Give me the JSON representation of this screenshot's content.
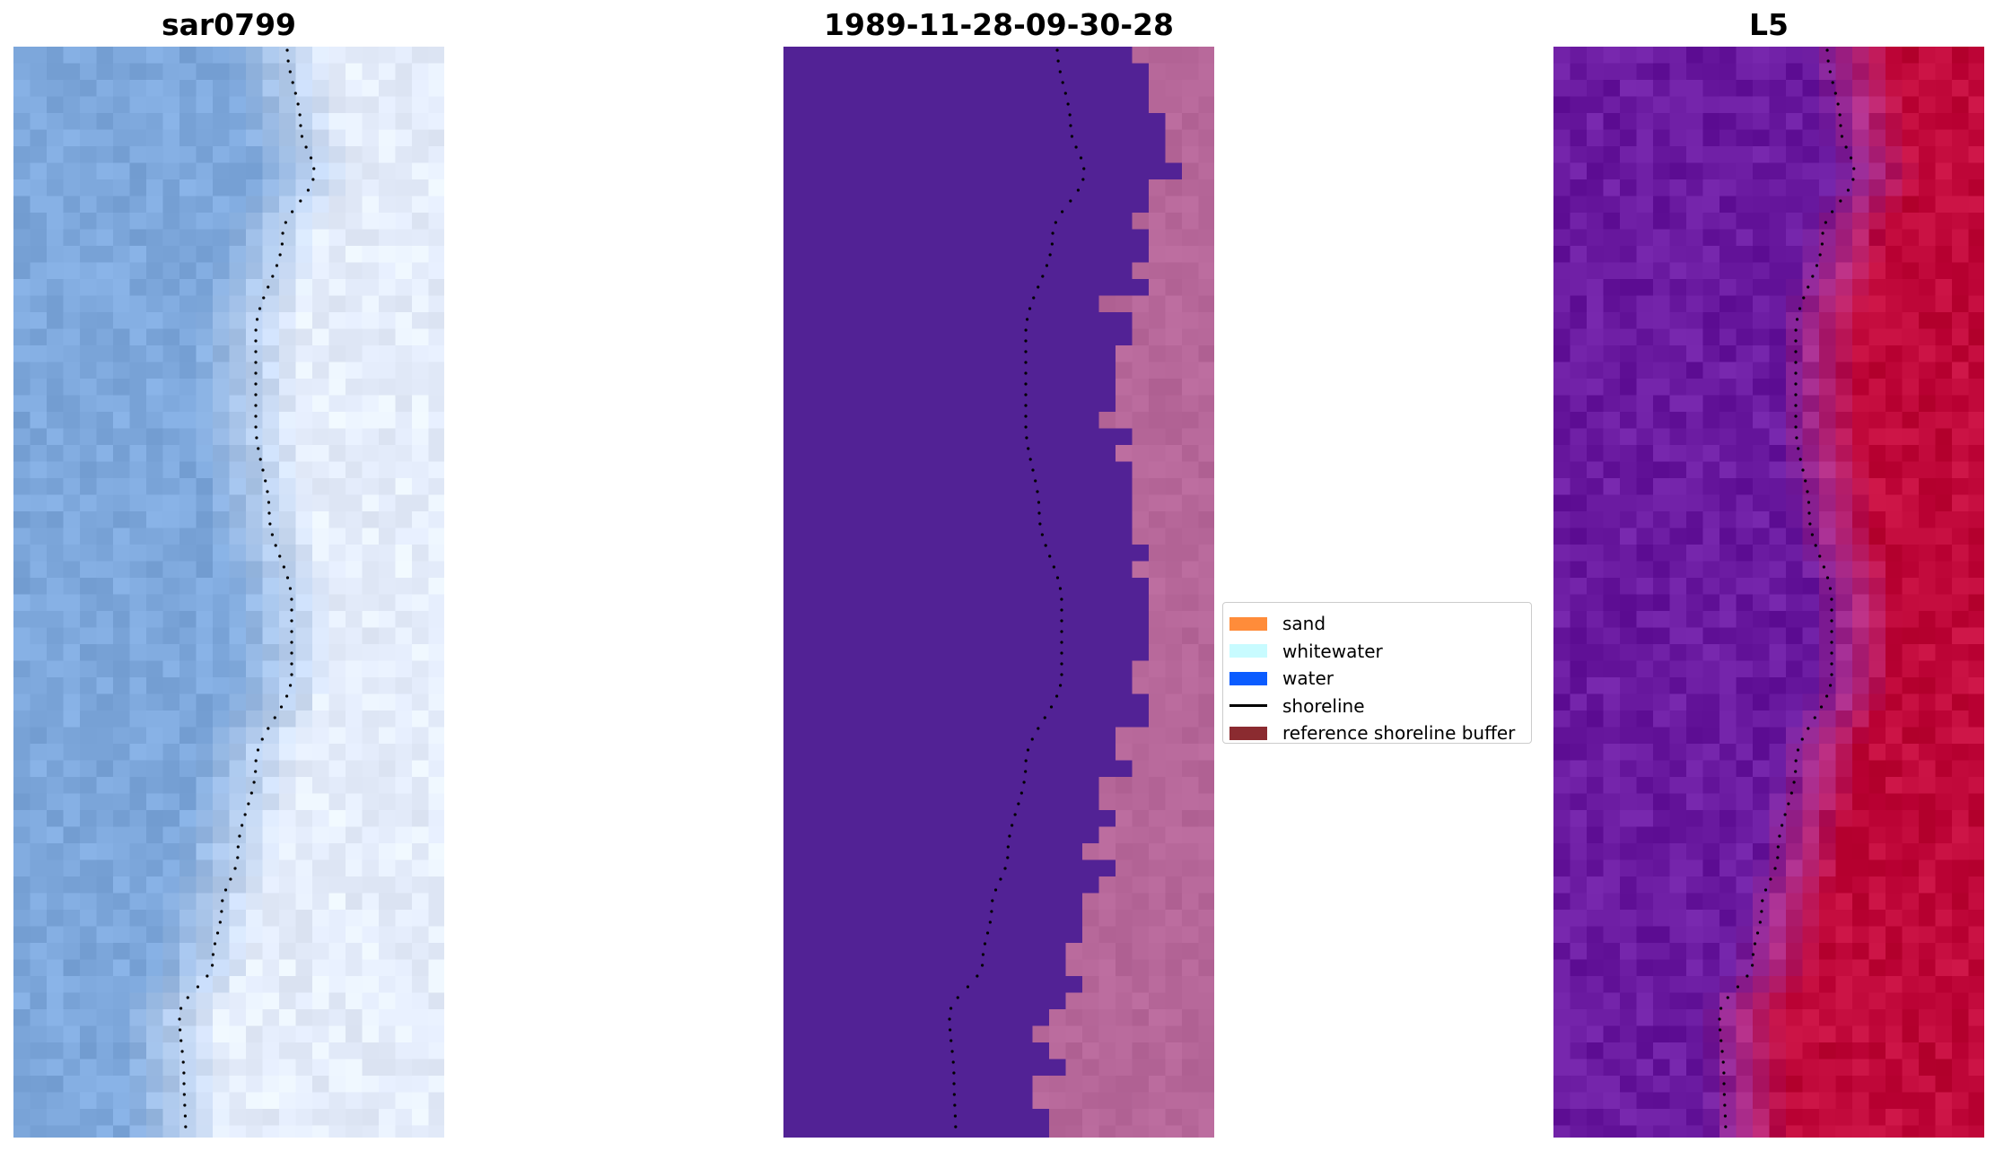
{
  "panels": [
    {
      "title": "sar0799",
      "type": "rgb"
    },
    {
      "title": "1989-11-28-09-30-28",
      "type": "classified"
    },
    {
      "title": "L5",
      "type": "index"
    }
  ],
  "legend": {
    "items": [
      {
        "label": "sand",
        "color": "#ff8c3a",
        "kind": "patch"
      },
      {
        "label": "whitewater",
        "color": "#c8fbff",
        "kind": "patch"
      },
      {
        "label": "water",
        "color": "#0b5cff",
        "kind": "patch"
      },
      {
        "label": "shoreline",
        "color": "#000000",
        "kind": "line"
      },
      {
        "label": "reference shoreline buffer",
        "color": "#8b2b30",
        "kind": "patch"
      }
    ]
  },
  "colors": {
    "classified_water": "#522295",
    "classified_land": "#b66799",
    "index_low": "#6a1aa0",
    "index_high": "#c0083a",
    "rgb_water": "#7ea8d4",
    "rgb_land": "#e6eef5"
  }
}
